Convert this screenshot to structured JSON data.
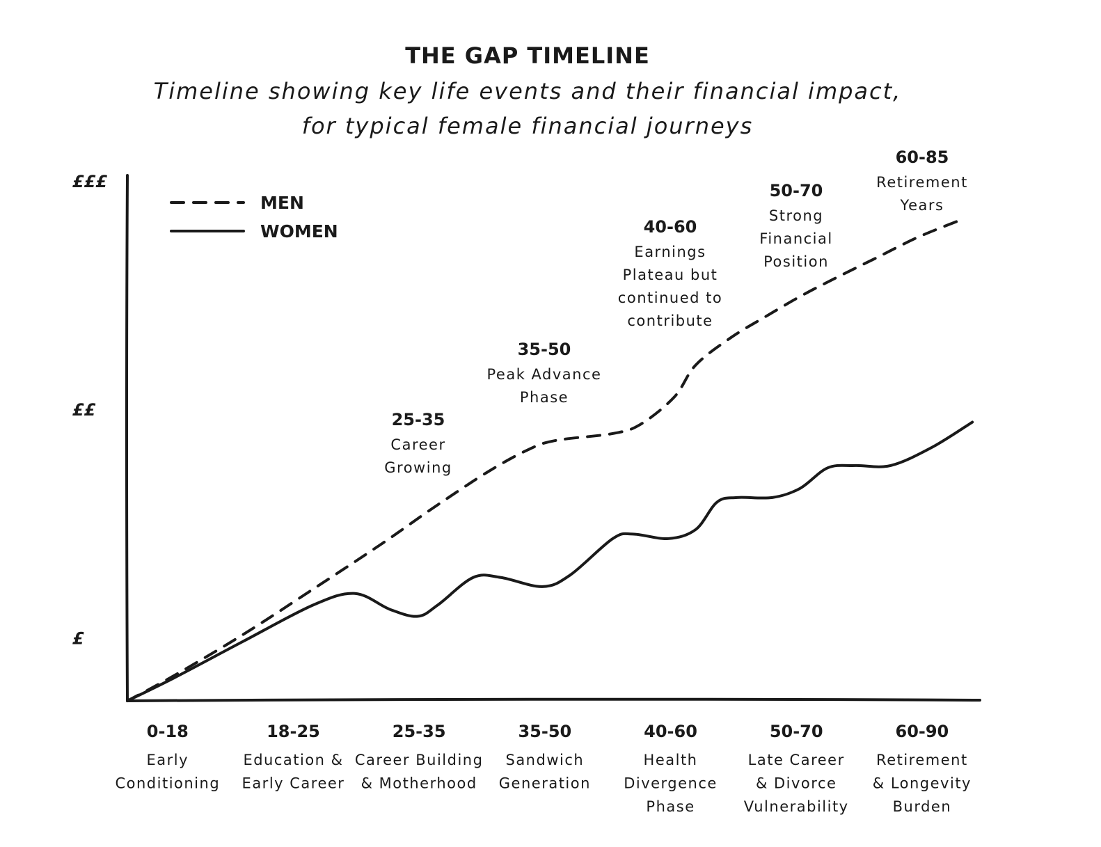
{
  "chart_data": {
    "type": "line",
    "title": "THE GAP TIMELINE",
    "subtitle": [
      "Timeline showing key life events and their financial impact,",
      "for typical female financial journeys"
    ],
    "categories": [
      "0-18",
      "18-25",
      "25-35",
      "35-50",
      "40-60",
      "50-70",
      "60-90"
    ],
    "category_descriptions": [
      [
        "Early",
        "Conditioning"
      ],
      [
        "Education &",
        "Early Career"
      ],
      [
        "Career Building",
        "& Motherhood"
      ],
      [
        "Sandwich",
        "Generation"
      ],
      [
        "Health",
        "Divergence",
        "Phase"
      ],
      [
        "Late Career",
        "& Divorce",
        "Vulnerability"
      ],
      [
        "Retirement",
        "& Longevity",
        "Burden"
      ]
    ],
    "xlim": [
      -0.32,
      6.46
    ],
    "ylim": [
      0.73,
      3.03
    ],
    "yticks": [
      {
        "value": 1,
        "label": "£"
      },
      {
        "value": 2,
        "label": "££"
      },
      {
        "value": 3,
        "label": "£££"
      }
    ],
    "grid": false,
    "legend": "upper left",
    "series": [
      {
        "name": "MEN",
        "color": "#1a1a1a",
        "line_style": "dashed",
        "x": [
          -0.32,
          0.05,
          0.6,
          1.16,
          1.71,
          2.1,
          2.54,
          2.87,
          3.09,
          3.54,
          3.76,
          4.03,
          4.2,
          4.48,
          4.75,
          5.03,
          5.31,
          5.64,
          5.97,
          6.33
        ],
        "values": [
          0.73,
          0.84,
          1.02,
          1.22,
          1.42,
          1.57,
          1.73,
          1.83,
          1.87,
          1.9,
          1.94,
          2.06,
          2.2,
          2.32,
          2.41,
          2.5,
          2.58,
          2.67,
          2.76,
          2.84
        ]
      },
      {
        "name": "WOMEN",
        "color": "#1a1a1a",
        "line_style": "solid",
        "x": [
          -0.32,
          0.05,
          0.6,
          1.16,
          1.49,
          1.77,
          1.99,
          2.15,
          2.43,
          2.65,
          2.98,
          3.2,
          3.54,
          3.7,
          3.98,
          4.2,
          4.37,
          4.53,
          4.81,
          5.03,
          5.25,
          5.47,
          5.75,
          6.08,
          6.4
        ],
        "values": [
          0.73,
          0.83,
          0.99,
          1.15,
          1.2,
          1.13,
          1.1,
          1.15,
          1.27,
          1.27,
          1.23,
          1.28,
          1.44,
          1.46,
          1.44,
          1.48,
          1.6,
          1.62,
          1.62,
          1.66,
          1.75,
          1.76,
          1.76,
          1.84,
          1.95
        ]
      }
    ],
    "annotations": [
      {
        "label": "25-35",
        "text": [
          "Career",
          "Growing"
        ]
      },
      {
        "label": "35-50",
        "text": [
          "Peak Advance",
          "Phase"
        ]
      },
      {
        "label": "40-60",
        "text": [
          "Earnings",
          "Plateau but",
          "continued to",
          "contribute"
        ]
      },
      {
        "label": "50-70",
        "text": [
          "Strong",
          "Financial",
          "Position"
        ]
      },
      {
        "label": "60-85",
        "text": [
          "Retirement",
          "Years"
        ]
      }
    ]
  }
}
